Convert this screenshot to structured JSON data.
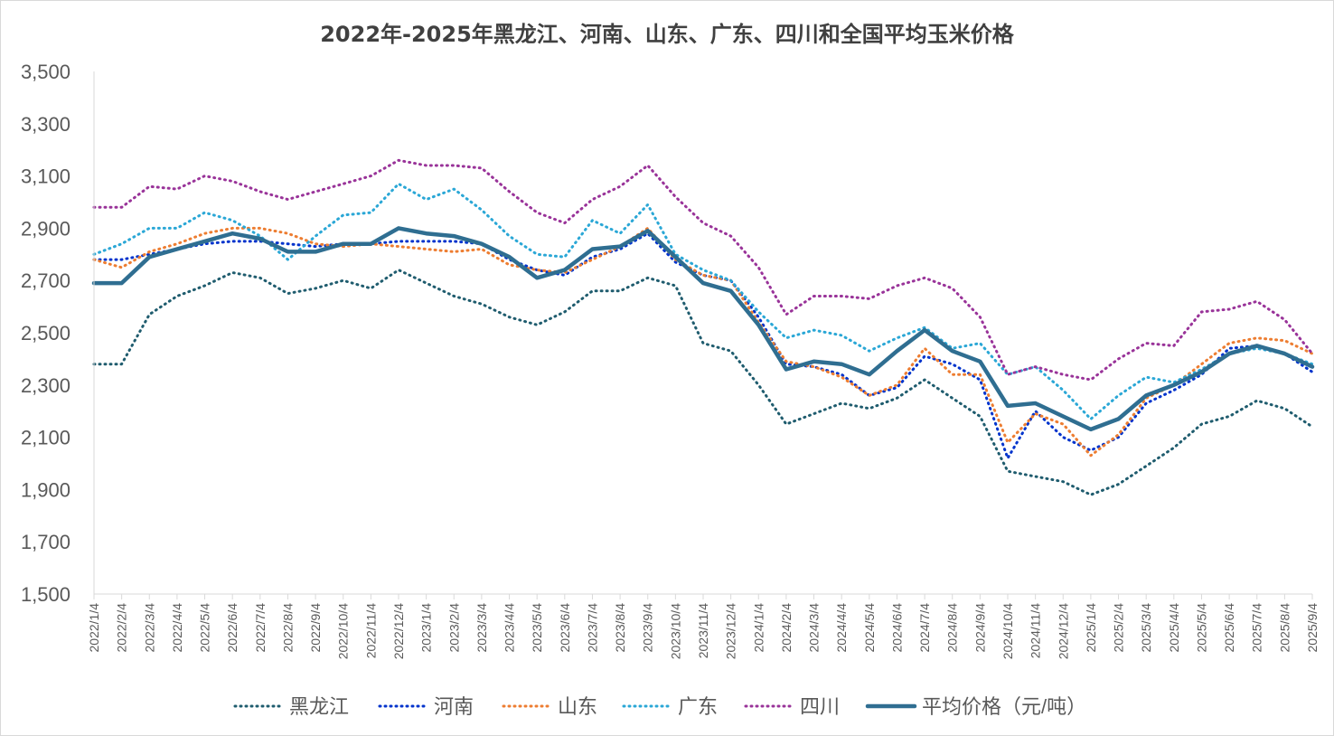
{
  "chart_data": {
    "type": "line",
    "title": "2022年-2025年黑龙江、河南、山东、广东、四川和全国平均玉米价格",
    "xlabel": "",
    "ylabel": "",
    "ylim": [
      1500,
      3500
    ],
    "y_ticks": [
      "1,500",
      "1,700",
      "1,900",
      "2,100",
      "2,300",
      "2,500",
      "2,700",
      "2,900",
      "3,100",
      "3,300",
      "3,500"
    ],
    "categories": [
      "2022/1/4",
      "2022/2/4",
      "2022/3/4",
      "2022/4/4",
      "2022/5/4",
      "2022/6/4",
      "2022/7/4",
      "2022/8/4",
      "2022/9/4",
      "2022/10/4",
      "2022/11/4",
      "2022/12/4",
      "2023/1/4",
      "2023/2/4",
      "2023/3/4",
      "2023/4/4",
      "2023/5/4",
      "2023/6/4",
      "2023/7/4",
      "2023/8/4",
      "2023/9/4",
      "2023/10/4",
      "2023/11/4",
      "2023/12/4",
      "2024/1/4",
      "2024/2/4",
      "2024/3/4",
      "2024/4/4",
      "2024/5/4",
      "2024/6/4",
      "2024/7/4",
      "2024/8/4",
      "2024/9/4",
      "2024/10/4",
      "2024/11/4",
      "2024/12/4",
      "2025/1/4",
      "2025/2/4",
      "2025/3/4",
      "2025/4/4",
      "2025/5/4",
      "2025/6/4",
      "2025/7/4",
      "2025/8/4",
      "2025/9/4"
    ],
    "grid": false,
    "legend_position": "bottom",
    "series": [
      {
        "name": "黑龙江",
        "color": "#1f5c6e",
        "style": "dotted",
        "values": [
          2380,
          2380,
          2570,
          2640,
          2680,
          2730,
          2710,
          2650,
          2670,
          2700,
          2670,
          2740,
          2690,
          2640,
          2610,
          2560,
          2530,
          2580,
          2660,
          2660,
          2710,
          2680,
          2460,
          2430,
          2300,
          2150,
          2190,
          2230,
          2210,
          2250,
          2320,
          2250,
          2180,
          1970,
          1950,
          1930,
          1880,
          1920,
          1990,
          2060,
          2150,
          2180,
          2240,
          2210,
          2140
        ]
      },
      {
        "name": "河南",
        "color": "#0033cc",
        "style": "dotted",
        "values": [
          2780,
          2780,
          2800,
          2820,
          2840,
          2850,
          2850,
          2840,
          2830,
          2840,
          2840,
          2850,
          2850,
          2850,
          2840,
          2780,
          2740,
          2720,
          2790,
          2820,
          2880,
          2770,
          2720,
          2700,
          2560,
          2380,
          2370,
          2340,
          2260,
          2290,
          2410,
          2380,
          2320,
          2020,
          2200,
          2100,
          2050,
          2100,
          2230,
          2280,
          2340,
          2440,
          2450,
          2420,
          2350
        ]
      },
      {
        "name": "山东",
        "color": "#ed7d31",
        "style": "dotted",
        "values": [
          2780,
          2750,
          2810,
          2840,
          2880,
          2900,
          2900,
          2880,
          2840,
          2830,
          2840,
          2830,
          2820,
          2810,
          2820,
          2760,
          2740,
          2730,
          2780,
          2830,
          2900,
          2780,
          2720,
          2700,
          2540,
          2390,
          2370,
          2330,
          2260,
          2300,
          2440,
          2340,
          2340,
          2080,
          2190,
          2150,
          2030,
          2110,
          2250,
          2300,
          2380,
          2460,
          2480,
          2470,
          2420
        ]
      },
      {
        "name": "广东",
        "color": "#2aa7d6",
        "style": "dotted",
        "values": [
          2800,
          2840,
          2900,
          2900,
          2960,
          2930,
          2870,
          2780,
          2870,
          2950,
          2960,
          3070,
          3010,
          3050,
          2970,
          2870,
          2800,
          2790,
          2930,
          2880,
          2990,
          2800,
          2740,
          2700,
          2580,
          2480,
          2510,
          2490,
          2430,
          2480,
          2520,
          2440,
          2460,
          2340,
          2370,
          2280,
          2170,
          2260,
          2330,
          2310,
          2360,
          2420,
          2440,
          2420,
          2380
        ]
      },
      {
        "name": "四川",
        "color": "#993399",
        "style": "dotted",
        "values": [
          2980,
          2980,
          3060,
          3050,
          3100,
          3080,
          3040,
          3010,
          3040,
          3070,
          3100,
          3160,
          3140,
          3140,
          3130,
          3040,
          2960,
          2920,
          3010,
          3060,
          3140,
          3020,
          2920,
          2870,
          2750,
          2570,
          2640,
          2640,
          2630,
          2680,
          2710,
          2670,
          2560,
          2340,
          2370,
          2340,
          2320,
          2400,
          2460,
          2450,
          2580,
          2590,
          2620,
          2550,
          2420
        ]
      },
      {
        "name": "平均价格（元/吨）",
        "color": "#2f6e91",
        "style": "solid",
        "values": [
          2690,
          2690,
          2790,
          2820,
          2850,
          2880,
          2860,
          2810,
          2810,
          2840,
          2840,
          2900,
          2880,
          2870,
          2840,
          2790,
          2710,
          2740,
          2820,
          2830,
          2890,
          2790,
          2690,
          2660,
          2530,
          2360,
          2390,
          2380,
          2340,
          2430,
          2510,
          2430,
          2390,
          2220,
          2230,
          2180,
          2130,
          2170,
          2260,
          2300,
          2350,
          2420,
          2450,
          2420,
          2370
        ]
      }
    ]
  }
}
